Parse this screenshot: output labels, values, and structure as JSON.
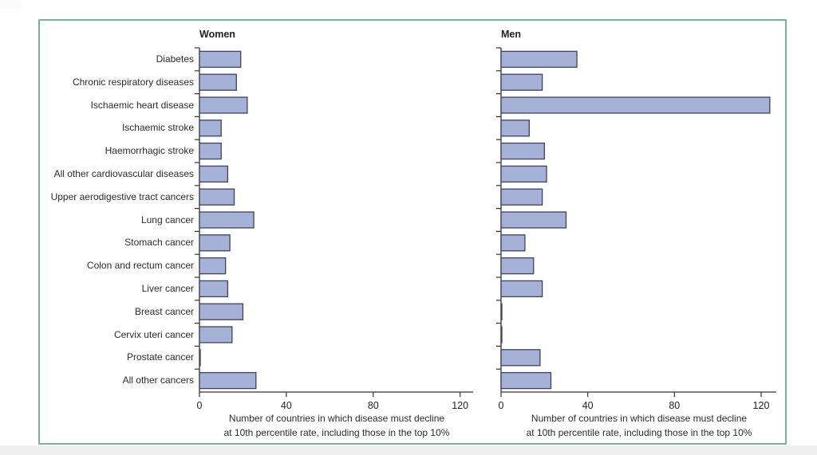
{
  "figure": {
    "panels": [
      {
        "title": "Women"
      },
      {
        "title": "Men"
      }
    ]
  },
  "colors": {
    "bar_fill": "#a5b1d7",
    "bar_stroke": "#42425a",
    "axis": "#333333",
    "text": "#222222",
    "frame_border": "#7daf9f"
  },
  "chart_data": [
    {
      "type": "bar",
      "orientation": "horizontal",
      "title": "Women",
      "categories": [
        "Diabetes",
        "Chronic respiratory diseases",
        "Ischaemic heart disease",
        "Ischaemic stroke",
        "Haemorrhagic stroke",
        "All other cardiovascular diseases",
        "Upper aerodigestive tract cancers",
        "Lung cancer",
        "Stomach cancer",
        "Colon and rectum cancer",
        "Liver cancer",
        "Breast cancer",
        "Cervix uteri cancer",
        "Prostate cancer",
        "All other cancers"
      ],
      "values": [
        19,
        17,
        22,
        10,
        10,
        13,
        16,
        25,
        14,
        12,
        13,
        20,
        15,
        0,
        26
      ],
      "xticks": [
        0,
        40,
        80,
        120
      ],
      "xlim": [
        0,
        126
      ],
      "grid": false,
      "xlabel_lines": [
        "Number of countries in which disease must decline",
        "at 10th percentile rate, including those in the top 10%"
      ]
    },
    {
      "type": "bar",
      "orientation": "horizontal",
      "title": "Men",
      "categories": [
        "Diabetes",
        "Chronic respiratory diseases",
        "Ischaemic heart disease",
        "Ischaemic stroke",
        "Haemorrhagic stroke",
        "All other cardiovascular diseases",
        "Upper aerodigestive tract cancers",
        "Lung cancer",
        "Stomach cancer",
        "Colon and rectum cancer",
        "Liver cancer",
        "Breast cancer",
        "Cervix uteri cancer",
        "Prostate cancer",
        "All other cancers"
      ],
      "values": [
        35,
        19,
        124,
        13,
        20,
        21,
        19,
        30,
        11,
        15,
        19,
        0,
        0,
        18,
        23
      ],
      "xticks": [
        0,
        40,
        80,
        120
      ],
      "xlim": [
        0,
        127
      ],
      "grid": false,
      "xlabel_lines": [
        "Number of countries in which disease must decline",
        "at 10th percentile rate, including those in the top 10%"
      ]
    }
  ]
}
